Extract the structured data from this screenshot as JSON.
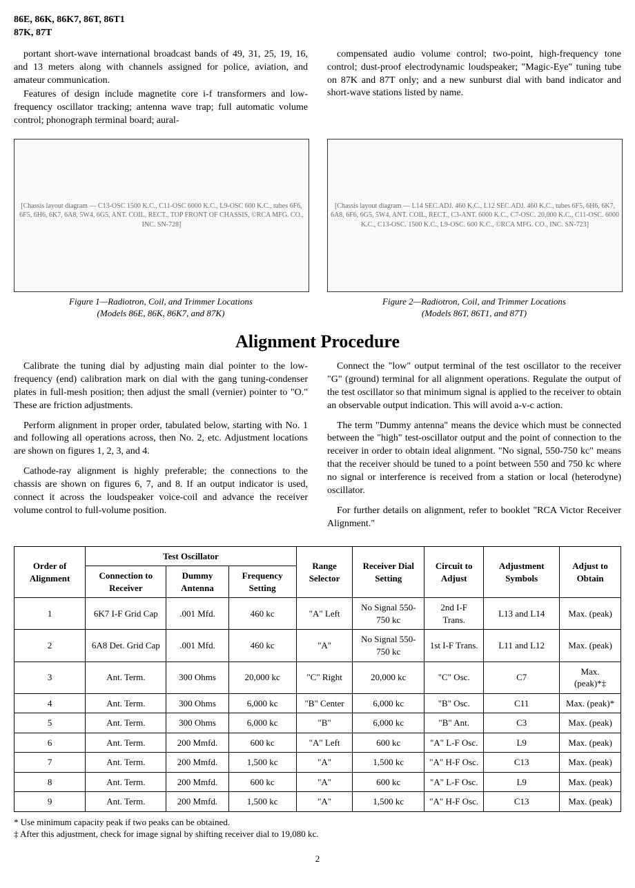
{
  "header": {
    "models": "86E, 86K, 86K7, 86T, 86T1\n87K, 87T"
  },
  "intro": {
    "left_p1": "portant short-wave international broadcast bands of 49, 31, 25, 19, 16, and 13 meters along with channels assigned for police, aviation, and amateur communication.",
    "left_p2": "Features of design include magnetite core i-f transformers and low-frequency oscillator tracking; antenna wave trap; full automatic volume control; phonograph terminal board; aural-",
    "right_p1": "compensated audio volume control; two-point, high-frequency tone control; dust-proof electrodynamic loudspeaker; \"Magic-Eye\" tuning tube on 87K and 87T only; and a new sunburst dial with band indicator and short-wave stations listed by name."
  },
  "figures": {
    "fig1_placeholder": "[Chassis layout diagram — C13-OSC 1500 K.C., C11-OSC 6000 K.C., L9-OSC 600 K.C., tubes 6F6, 6F5, 6H6, 6K7, 6A8, 5W4, 6G5, ANT. COIL, RECT., TOP FRONT OF CHASSIS, ©RCA MFG. CO., INC. SN-728]",
    "fig1_caption_l1": "Figure 1—Radiotron, Coil, and Trimmer Locations",
    "fig1_caption_l2": "(Models 86E, 86K, 86K7, and 87K)",
    "fig2_placeholder": "[Chassis layout diagram — L14 SEC.ADJ. 460 K.C., L12 SEC.ADJ. 460 K.C., tubes 6F5, 6H6, 6K7, 6A8, 6F6, 6G5, 5W4, ANT. COIL, RECT., C3-ANT. 6000 K.C., C7-OSC. 20,000 K.C., C11-OSC. 6000 K.C., C13-OSC. 1500 K.C., L9-OSC. 600 K.C., ©RCA MFG. CO., INC. SN-723]",
    "fig2_caption_l1": "Figure 2—Radiotron, Coil, and Trimmer Locations",
    "fig2_caption_l2": "(Models 86T, 86T1, and 87T)"
  },
  "section": {
    "title": "Alignment Procedure"
  },
  "procedure": {
    "left_p1": "Calibrate the tuning dial by adjusting main dial pointer to the low-frequency (end) calibration mark on dial with the gang tuning-condenser plates in full-mesh position; then adjust the small (vernier) pointer to \"O.\" These are friction adjustments.",
    "left_p2": "Perform alignment in proper order, tabulated below, starting with No. 1 and following all operations across, then No. 2, etc. Adjustment locations are shown on figures 1, 2, 3, and 4.",
    "left_p3": "Cathode-ray alignment is highly preferable; the connections to the chassis are shown on figures 6, 7, and 8. If an output indicator is used, connect it across the loudspeaker voice-coil and advance the receiver volume control to full-volume position.",
    "right_p1": "Connect the \"low\" output terminal of the test oscillator to the receiver \"G\" (ground) terminal for all alignment operations. Regulate the output of the test oscillator so that minimum signal is applied to the receiver to obtain an observable output indication. This will avoid a-v-c action.",
    "right_p2": "The term \"Dummy antenna\" means the device which must be connected between the \"high\" test-oscillator output and the point of connection to the receiver in order to obtain ideal alignment. \"No signal, 550-750 kc\" means that the receiver should be tuned to a point between 550 and 750 kc where no signal or interference is received from a station or local (heterodyne) oscillator.",
    "right_p3": "For further details on alignment, refer to booklet \"RCA Victor Receiver Alignment.\""
  },
  "table": {
    "headers": {
      "order": "Order of Alignment",
      "test_osc": "Test Oscillator",
      "conn": "Connection to Receiver",
      "dummy": "Dummy Antenna",
      "freq": "Frequency Setting",
      "range": "Range Selector",
      "dial": "Receiver Dial Setting",
      "circuit": "Circuit to Adjust",
      "symbols": "Adjustment Symbols",
      "obtain": "Adjust to Obtain"
    },
    "rows": [
      {
        "order": "1",
        "conn": "6K7 I-F Grid Cap",
        "dummy": ".001 Mfd.",
        "freq": "460 kc",
        "range": "\"A\" Left",
        "dial": "No Signal 550-750 kc",
        "circuit": "2nd I-F Trans.",
        "symbols": "L13 and L14",
        "obtain": "Max. (peak)"
      },
      {
        "order": "2",
        "conn": "6A8 Det. Grid Cap",
        "dummy": ".001 Mfd.",
        "freq": "460 kc",
        "range": "\"A\"",
        "dial": "No Signal 550-750 kc",
        "circuit": "1st I-F Trans.",
        "symbols": "L11 and L12",
        "obtain": "Max. (peak)"
      },
      {
        "order": "3",
        "conn": "Ant. Term.",
        "dummy": "300 Ohms",
        "freq": "20,000 kc",
        "range": "\"C\" Right",
        "dial": "20,000 kc",
        "circuit": "\"C\" Osc.",
        "symbols": "C7",
        "obtain": "Max. (peak)*‡"
      },
      {
        "order": "4",
        "conn": "Ant. Term.",
        "dummy": "300 Ohms",
        "freq": "6,000 kc",
        "range": "\"B\" Center",
        "dial": "6,000 kc",
        "circuit": "\"B\" Osc.",
        "symbols": "C11",
        "obtain": "Max. (peak)*"
      },
      {
        "order": "5",
        "conn": "Ant. Term.",
        "dummy": "300 Ohms",
        "freq": "6,000 kc",
        "range": "\"B\"",
        "dial": "6,000 kc",
        "circuit": "\"B\" Ant.",
        "symbols": "C3",
        "obtain": "Max. (peak)"
      },
      {
        "order": "6",
        "conn": "Ant. Term.",
        "dummy": "200 Mmfd.",
        "freq": "600 kc",
        "range": "\"A\" Left",
        "dial": "600 kc",
        "circuit": "\"A\" L-F Osc.",
        "symbols": "L9",
        "obtain": "Max. (peak)"
      },
      {
        "order": "7",
        "conn": "Ant. Term.",
        "dummy": "200 Mmfd.",
        "freq": "1,500 kc",
        "range": "\"A\"",
        "dial": "1,500 kc",
        "circuit": "\"A\" H-F Osc.",
        "symbols": "C13",
        "obtain": "Max. (peak)"
      },
      {
        "order": "8",
        "conn": "Ant. Term.",
        "dummy": "200 Mmfd.",
        "freq": "600 kc",
        "range": "\"A\"",
        "dial": "600 kc",
        "circuit": "\"A\" L-F Osc.",
        "symbols": "L9",
        "obtain": "Max. (peak)"
      },
      {
        "order": "9",
        "conn": "Ant. Term.",
        "dummy": "200 Mmfd.",
        "freq": "1,500 kc",
        "range": "\"A\"",
        "dial": "1,500 kc",
        "circuit": "\"A\" H-F Osc.",
        "symbols": "C13",
        "obtain": "Max. (peak)"
      }
    ]
  },
  "footnotes": {
    "n1": "* Use minimum capacity peak if two peaks can be obtained.",
    "n2": "‡ After this adjustment, check for image signal by shifting receiver dial to 19,080 kc."
  },
  "page_number": "2"
}
